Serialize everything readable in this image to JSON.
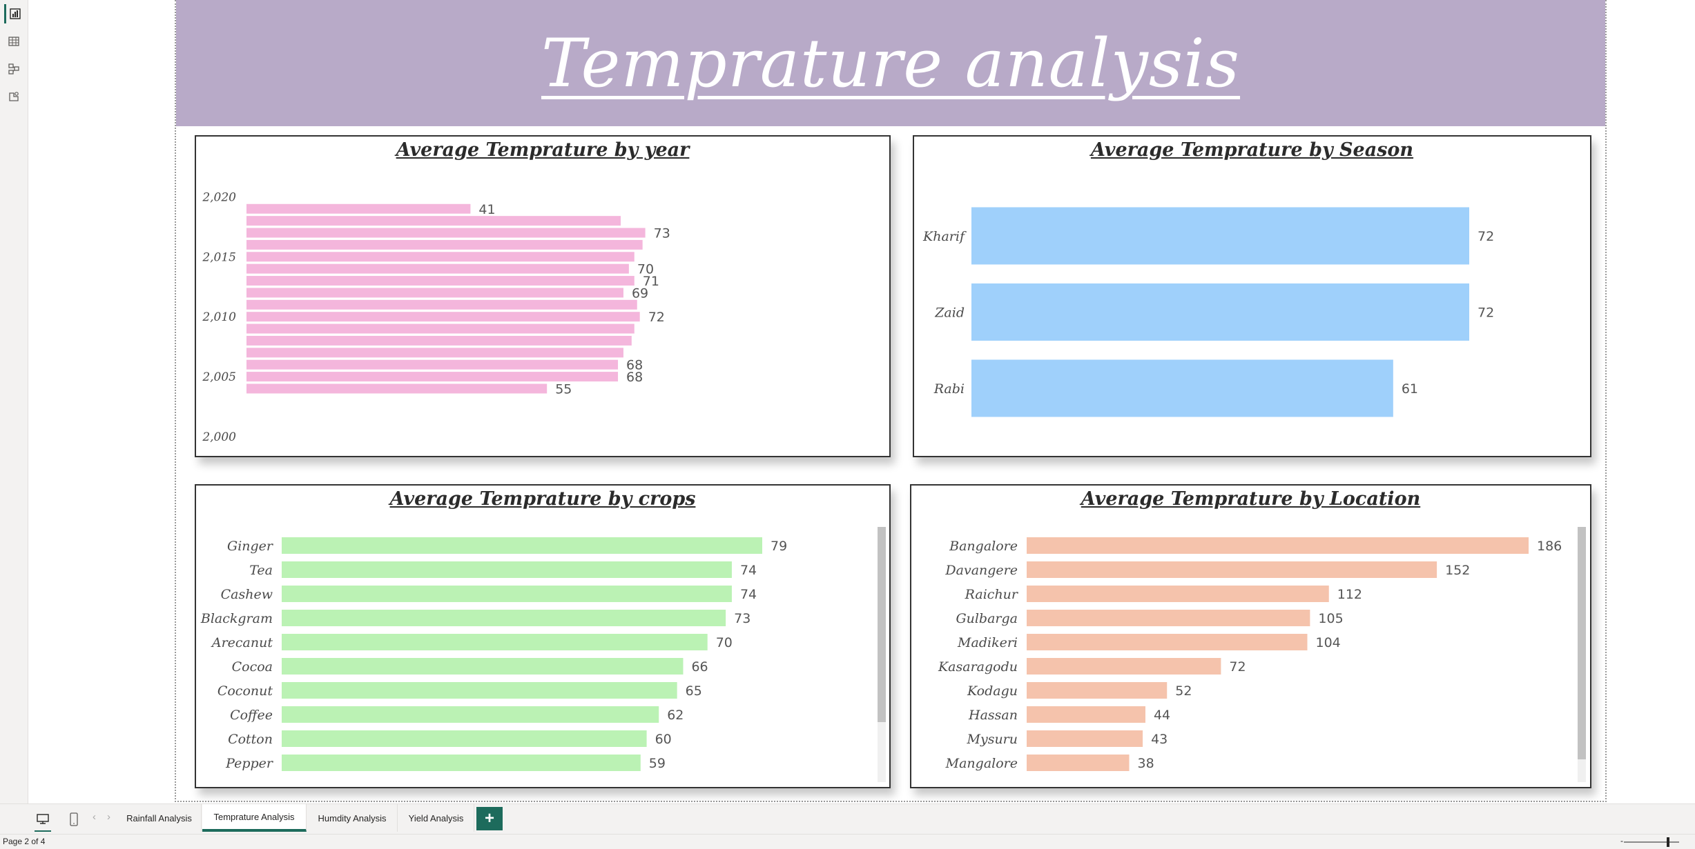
{
  "report": {
    "title": "Temprature analysis",
    "banner_color": "#b8aac8"
  },
  "left_rail": {
    "items": [
      {
        "icon": "report-view-icon",
        "active": true
      },
      {
        "icon": "table-view-icon",
        "active": false
      },
      {
        "icon": "model-view-icon",
        "active": false
      },
      {
        "icon": "dax-query-icon",
        "active": false
      }
    ]
  },
  "page_tabs": {
    "tabs": [
      {
        "label": "Rainfall Analysis",
        "active": false
      },
      {
        "label": "Temprature Analysis",
        "active": true
      },
      {
        "label": "Humdity Analysis",
        "active": false
      },
      {
        "label": "Yield Analysis",
        "active": false
      }
    ],
    "add_label": "+"
  },
  "status_bar": {
    "page_indicator": "Page 2 of 4",
    "zoom_minus": "-"
  },
  "chart_data": [
    {
      "id": "year",
      "type": "bar",
      "orientation": "horizontal",
      "title": "Average Temprature by year",
      "color": "#f4b6dc",
      "yticks": [
        "2,020",
        "2,015",
        "2,010",
        "2,005",
        "2,000"
      ],
      "ylim": [
        2000,
        2021
      ],
      "categories": [
        2019,
        2018,
        2017,
        2016,
        2015,
        2014,
        2013,
        2012,
        2011,
        2010,
        2009,
        2008,
        2007,
        2006,
        2005,
        2004
      ],
      "values": [
        41,
        68.5,
        73,
        72.5,
        71,
        70,
        71,
        69,
        71.5,
        72,
        71,
        70.5,
        69,
        68,
        68,
        55
      ],
      "data_labels": [
        {
          "index": 0,
          "text": "41"
        },
        {
          "index": 2,
          "text": "73"
        },
        {
          "index": 5,
          "text": "70"
        },
        {
          "index": 6,
          "text": "71"
        },
        {
          "index": 7,
          "text": "69"
        },
        {
          "index": 9,
          "text": "72"
        },
        {
          "index": 13,
          "text": "68"
        },
        {
          "index": 14,
          "text": "68"
        },
        {
          "index": 15,
          "text": "55"
        }
      ]
    },
    {
      "id": "season",
      "type": "bar",
      "orientation": "horizontal",
      "title": "Average Temprature by Season",
      "color": "#9fd0fb",
      "categories": [
        "Kharif",
        "Zaid",
        "Rabi"
      ],
      "values": [
        72,
        72,
        61
      ]
    },
    {
      "id": "crops",
      "type": "bar",
      "orientation": "horizontal",
      "title": "Average Temprature by crops",
      "color": "#bbf2b4",
      "categories": [
        "Ginger",
        "Tea",
        "Cashew",
        "Blackgram",
        "Arecanut",
        "Cocoa",
        "Coconut",
        "Coffee",
        "Cotton",
        "Pepper"
      ],
      "values": [
        79,
        74,
        74,
        73,
        70,
        66,
        65,
        62,
        60,
        59
      ]
    },
    {
      "id": "location",
      "type": "bar",
      "orientation": "horizontal",
      "title": "Average Temprature by Location",
      "color": "#f5c3ac",
      "categories": [
        "Bangalore",
        "Davangere",
        "Raichur",
        "Gulbarga",
        "Madikeri",
        "Kasaragodu",
        "Kodagu",
        "Hassan",
        "Mysuru",
        "Mangalore"
      ],
      "values": [
        186,
        152,
        112,
        105,
        104,
        72,
        52,
        44,
        43,
        38
      ]
    }
  ]
}
